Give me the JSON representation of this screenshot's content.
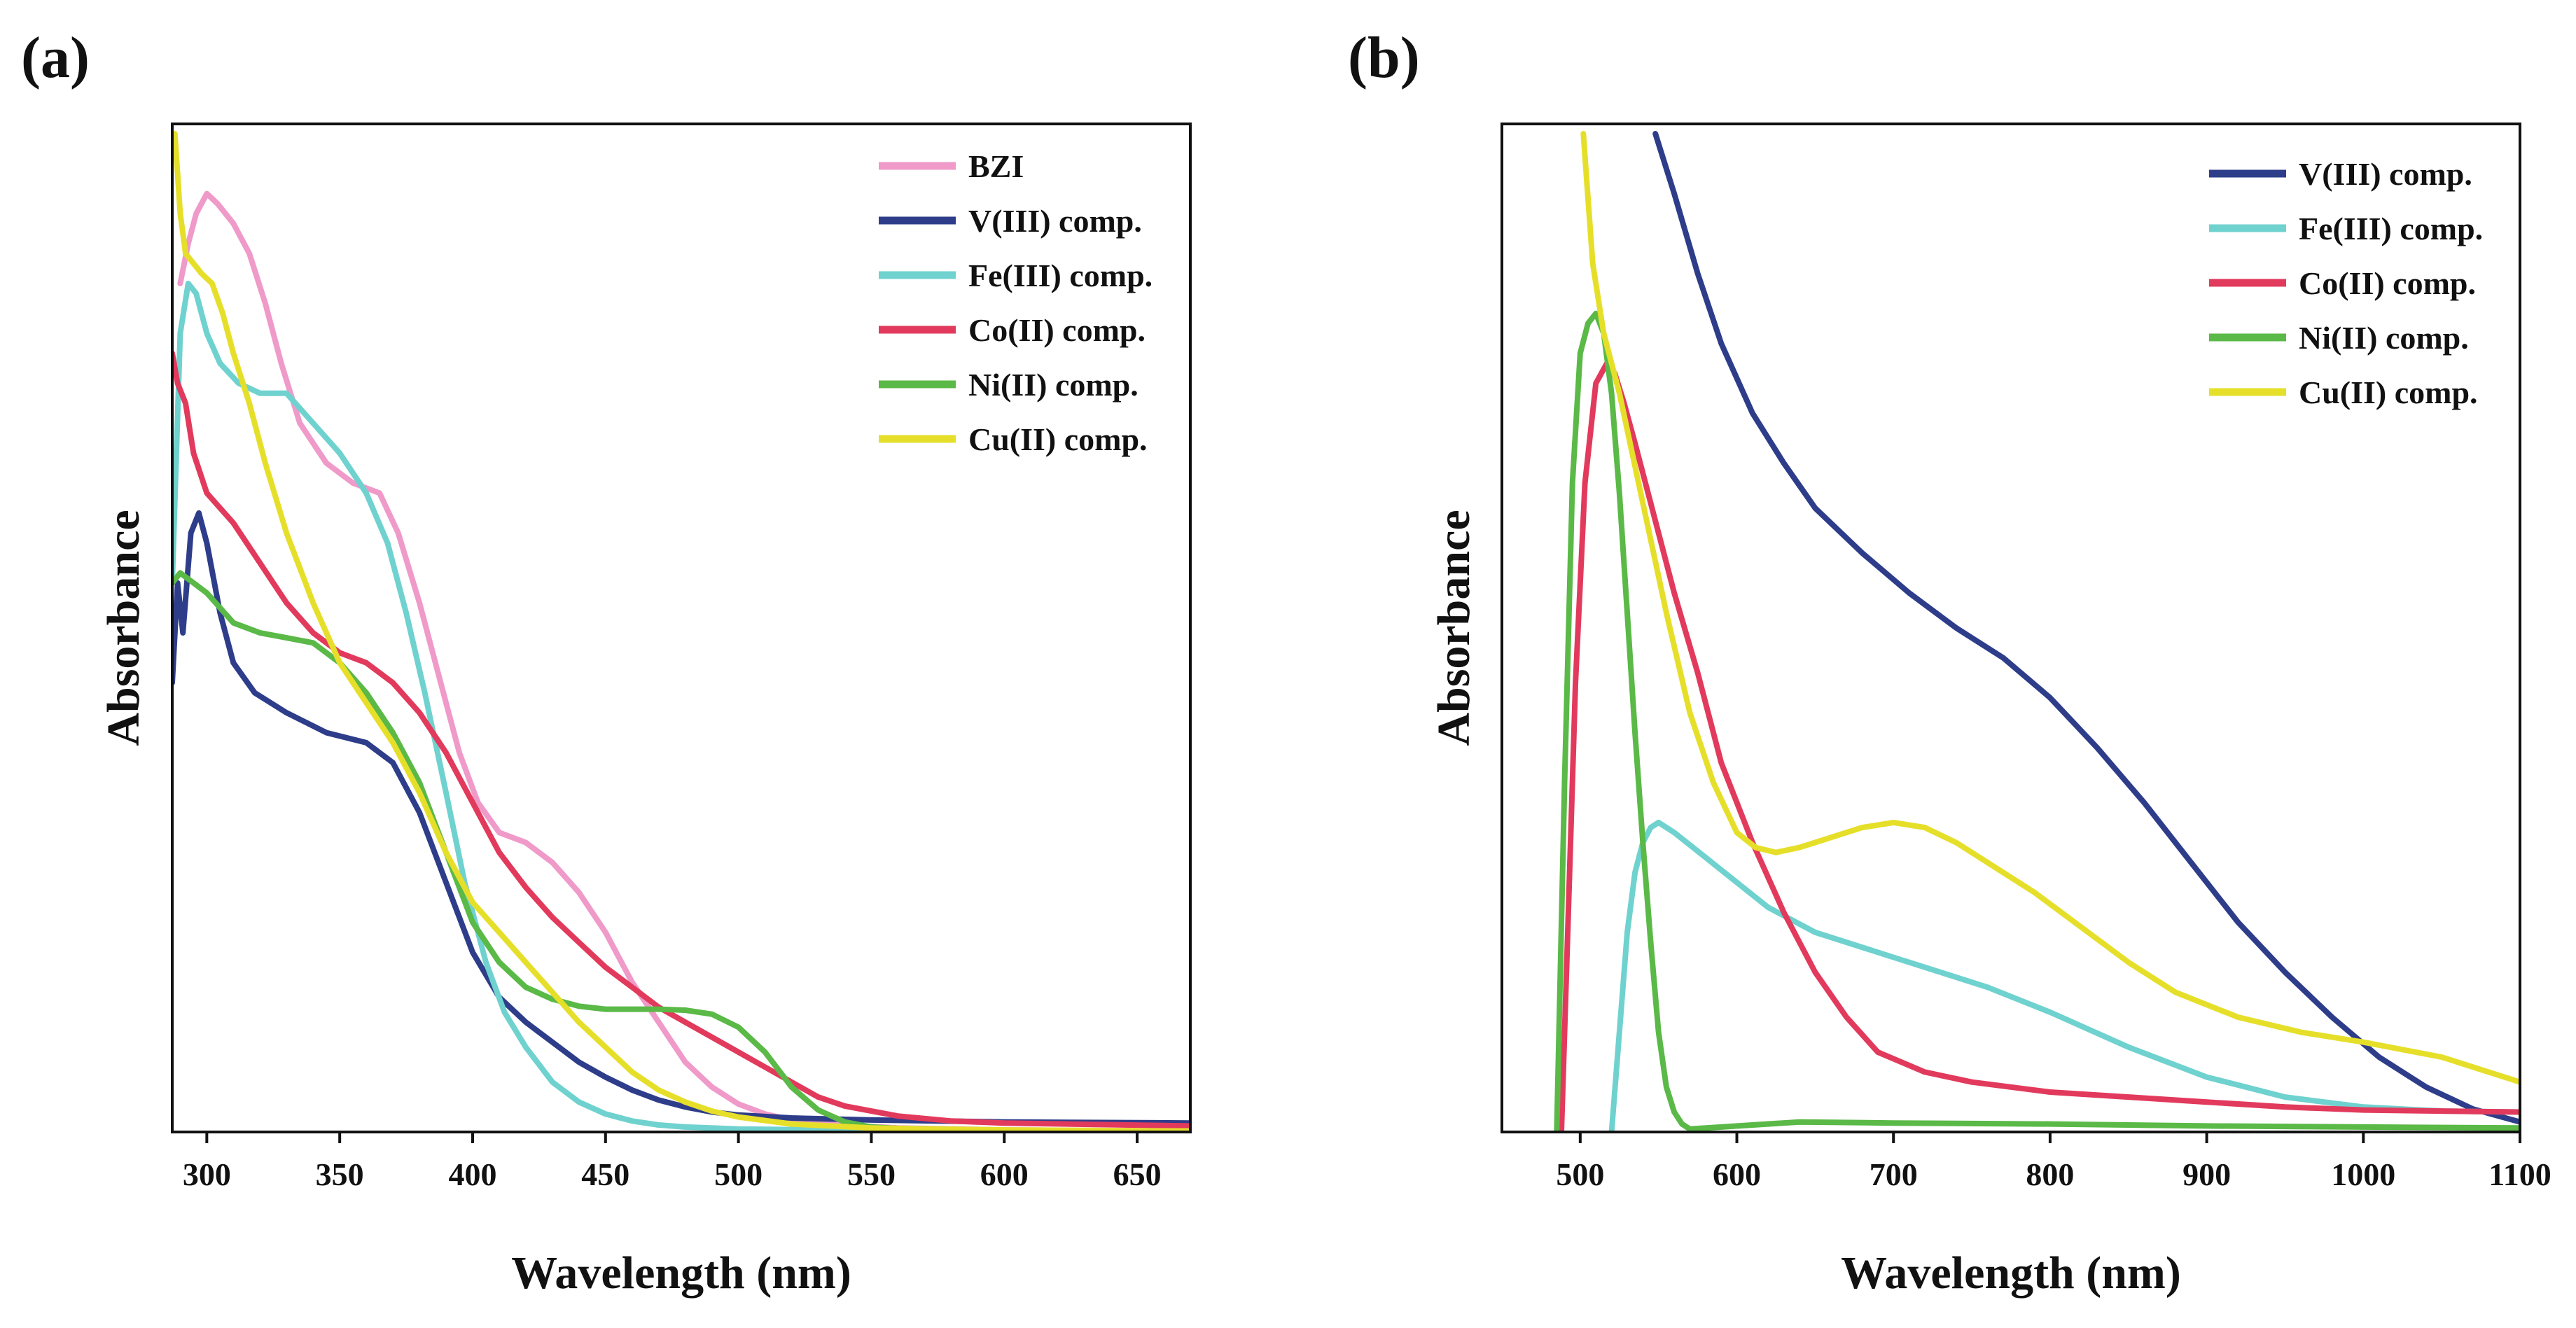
{
  "chart_data": [
    {
      "id": "a",
      "panel_label": "(a)",
      "type": "line",
      "xlabel": "Wavelength (nm)",
      "ylabel": "Absorbance",
      "xlim": [
        287,
        670
      ],
      "ylim": [
        0,
        100
      ],
      "xticks": [
        300,
        350,
        400,
        450,
        500,
        550,
        600,
        650
      ],
      "legend_position": "top-right",
      "series": [
        {
          "name": "BZI",
          "color": "#ef9ac9",
          "x": [
            290,
            293,
            296,
            300,
            304,
            310,
            316,
            322,
            328,
            335,
            345,
            355,
            365,
            372,
            380,
            388,
            395,
            402,
            410,
            420,
            430,
            440,
            450,
            460,
            470,
            480,
            490,
            500,
            510,
            520,
            540,
            560,
            600,
            670
          ],
          "y": [
            85,
            89,
            92,
            94,
            93,
            91,
            88,
            83,
            77,
            71,
            67,
            65,
            64,
            60,
            53,
            45,
            38,
            33,
            30,
            29,
            27,
            24,
            20,
            15,
            11,
            7,
            4.5,
            2.8,
            1.8,
            1.2,
            0.7,
            0.4,
            0.2,
            0.1
          ]
        },
        {
          "name": "V(III) comp.",
          "color": "#2e3d8a",
          "x": [
            287,
            289,
            291,
            294,
            297,
            300,
            305,
            310,
            318,
            330,
            345,
            360,
            370,
            380,
            390,
            400,
            410,
            420,
            430,
            440,
            450,
            460,
            470,
            480,
            490,
            500,
            520,
            550,
            600,
            670
          ],
          "y": [
            45,
            55,
            50,
            60,
            62,
            59,
            52,
            47,
            44,
            42,
            40,
            39,
            37,
            32,
            25,
            18,
            13.5,
            11,
            9,
            7,
            5.5,
            4.2,
            3.2,
            2.5,
            2.0,
            1.7,
            1.4,
            1.2,
            1.0,
            0.9
          ]
        },
        {
          "name": "Fe(III) comp.",
          "color": "#6fd2cf",
          "x": [
            287,
            290,
            293,
            296,
            300,
            305,
            312,
            320,
            330,
            340,
            350,
            360,
            368,
            375,
            382,
            390,
            397,
            405,
            412,
            420,
            430,
            440,
            450,
            460,
            470,
            480,
            500,
            530,
            600,
            670
          ],
          "y": [
            55,
            80,
            85,
            84,
            80,
            77,
            75,
            74,
            74,
            71,
            68,
            64,
            59,
            52,
            44,
            34,
            25,
            17,
            12,
            8.5,
            5,
            3,
            1.8,
            1.1,
            0.7,
            0.5,
            0.3,
            0.2,
            0.1,
            0.1
          ]
        },
        {
          "name": "Co(II) comp.",
          "color": "#e23a5c",
          "x": [
            287,
            289,
            292,
            295,
            300,
            310,
            320,
            330,
            340,
            350,
            360,
            370,
            380,
            390,
            400,
            410,
            420,
            430,
            440,
            450,
            460,
            470,
            480,
            490,
            500,
            510,
            520,
            530,
            540,
            550,
            560,
            580,
            600,
            670
          ],
          "y": [
            78,
            75,
            73,
            68,
            64,
            61,
            57,
            53,
            50,
            48,
            47,
            45,
            42,
            38,
            33,
            28,
            24.5,
            21.5,
            19,
            16.5,
            14.5,
            12.5,
            11,
            9.5,
            8,
            6.5,
            5,
            3.5,
            2.6,
            2.1,
            1.6,
            1.1,
            0.9,
            0.6
          ]
        },
        {
          "name": "Ni(II) comp.",
          "color": "#5ab947",
          "x": [
            287,
            290,
            295,
            300,
            310,
            320,
            330,
            340,
            350,
            360,
            370,
            380,
            390,
            400,
            410,
            420,
            430,
            440,
            450,
            460,
            470,
            480,
            490,
            500,
            510,
            520,
            530,
            540,
            550,
            570,
            600,
            670
          ],
          "y": [
            55,
            56,
            55,
            54,
            51,
            50,
            49.5,
            49,
            47,
            44,
            40,
            35,
            28,
            21,
            17,
            14.5,
            13.3,
            12.6,
            12.3,
            12.3,
            12.3,
            12.2,
            11.8,
            10.5,
            8,
            4.5,
            2.2,
            1,
            0.5,
            0.2,
            0.1,
            0.1
          ]
        },
        {
          "name": "Cu(II) comp.",
          "color": "#e6df2a",
          "x": [
            288,
            290,
            292,
            295,
            298,
            302,
            306,
            310,
            316,
            322,
            330,
            340,
            350,
            360,
            370,
            380,
            390,
            400,
            410,
            420,
            430,
            440,
            450,
            460,
            470,
            480,
            490,
            500,
            520,
            550,
            600,
            670
          ],
          "y": [
            100,
            92,
            88,
            87,
            86,
            85,
            82,
            78,
            73,
            67,
            60,
            53,
            47,
            43,
            39,
            34,
            28,
            23,
            20,
            17,
            14,
            11,
            8.5,
            6,
            4.2,
            3,
            2.1,
            1.5,
            0.8,
            0.4,
            0.2,
            0.1
          ]
        }
      ]
    },
    {
      "id": "b",
      "panel_label": "(b)",
      "type": "line",
      "xlabel": "Wavelength (nm)",
      "ylabel": "Absorbance",
      "xlim": [
        450,
        1100
      ],
      "ylim": [
        0,
        100
      ],
      "xticks": [
        500,
        600,
        700,
        800,
        900,
        1000,
        1100
      ],
      "legend_position": "top-right",
      "series": [
        {
          "name": "V(III) comp.",
          "color": "#2e3d8a",
          "x": [
            548,
            560,
            575,
            590,
            610,
            630,
            650,
            680,
            710,
            740,
            770,
            800,
            830,
            860,
            890,
            920,
            950,
            980,
            1010,
            1040,
            1070,
            1100
          ],
          "y": [
            100,
            94,
            86,
            79,
            72,
            67,
            62.5,
            58,
            54,
            50.5,
            47.5,
            43.5,
            38.5,
            33,
            27,
            21,
            16,
            11.5,
            7.5,
            4.5,
            2.3,
            1.0
          ]
        },
        {
          "name": "Fe(III) comp.",
          "color": "#6fd2cf",
          "x": [
            520,
            525,
            530,
            535,
            540,
            545,
            550,
            560,
            580,
            600,
            620,
            650,
            680,
            700,
            730,
            760,
            800,
            850,
            900,
            950,
            1000,
            1050,
            1100
          ],
          "y": [
            0,
            10,
            20,
            26,
            29,
            30.5,
            31,
            30,
            27.5,
            25,
            22.5,
            20,
            18.5,
            17.5,
            16,
            14.5,
            12,
            8.5,
            5.5,
            3.5,
            2.5,
            2.1,
            2.0
          ]
        },
        {
          "name": "Co(II) comp.",
          "color": "#e23a5c",
          "x": [
            488,
            492,
            497,
            503,
            510,
            517,
            522,
            528,
            535,
            545,
            560,
            575,
            590,
            610,
            630,
            650,
            670,
            690,
            720,
            750,
            800,
            850,
            900,
            950,
            1000,
            1050,
            1100
          ],
          "y": [
            0,
            20,
            45,
            65,
            75,
            77,
            76,
            73,
            69,
            63,
            54,
            46,
            37,
            29,
            22,
            16,
            11.5,
            8,
            6,
            5,
            4,
            3.5,
            3,
            2.5,
            2.2,
            2.1,
            2.0
          ]
        },
        {
          "name": "Ni(II) comp.",
          "color": "#5ab947",
          "x": [
            485,
            490,
            495,
            500,
            505,
            510,
            515,
            520,
            525,
            530,
            535,
            540,
            545,
            550,
            555,
            560,
            565,
            570,
            590,
            640,
            700,
            800,
            900,
            1000,
            1100
          ],
          "y": [
            0,
            35,
            65,
            78,
            81,
            82,
            80,
            74,
            64,
            52,
            40,
            29,
            19,
            10,
            4.5,
            2,
            0.8,
            0.3,
            0.5,
            1.0,
            0.9,
            0.8,
            0.6,
            0.5,
            0.4
          ]
        },
        {
          "name": "Cu(II) comp.",
          "color": "#e6df2a",
          "x": [
            502,
            508,
            515,
            525,
            540,
            555,
            570,
            585,
            600,
            612,
            625,
            640,
            660,
            680,
            700,
            720,
            740,
            760,
            790,
            820,
            850,
            880,
            920,
            960,
            1000,
            1050,
            1100
          ],
          "y": [
            100,
            87,
            80,
            74,
            63,
            52,
            42,
            35,
            30,
            28.5,
            28,
            28.5,
            29.5,
            30.5,
            31,
            30.5,
            29,
            27,
            24,
            20.5,
            17,
            14,
            11.5,
            10,
            9,
            7.5,
            5
          ]
        }
      ]
    }
  ]
}
